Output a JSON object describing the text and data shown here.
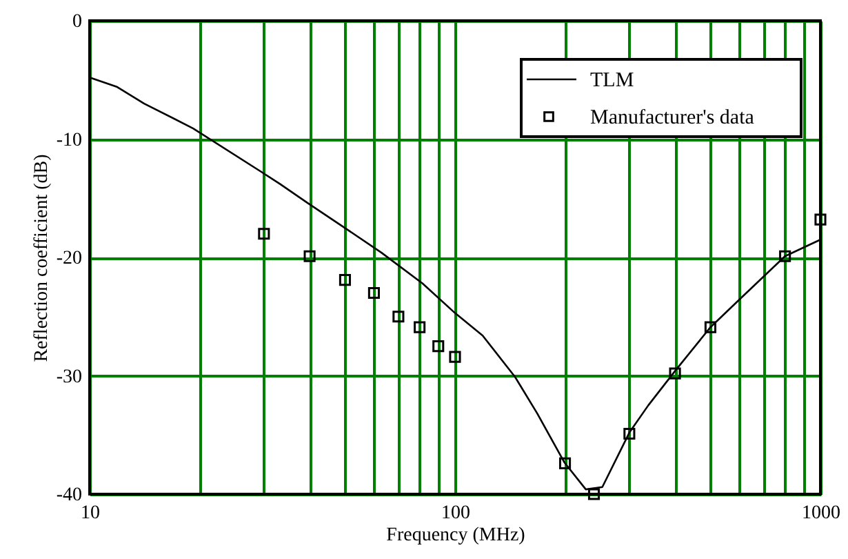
{
  "chart_data": {
    "type": "line",
    "xlabel": "Frequency (MHz)",
    "ylabel": "Reflection coefficient (dB)",
    "log": "x",
    "xlim": [
      10,
      1000
    ],
    "ylim": [
      -40,
      0
    ],
    "xticks": [
      10,
      {
        "value": 20,
        "label": null
      },
      {
        "value": 30,
        "label": null
      },
      {
        "value": 40,
        "label": null
      },
      {
        "value": 50,
        "label": null
      },
      {
        "value": 60,
        "label": null
      },
      {
        "value": 70,
        "label": null
      },
      {
        "value": 80,
        "label": null
      },
      {
        "value": 90,
        "label": null
      },
      100,
      {
        "value": 200,
        "label": null
      },
      {
        "value": 300,
        "label": null
      },
      {
        "value": 400,
        "label": null
      },
      {
        "value": 500,
        "label": null
      },
      {
        "value": 600,
        "label": null
      },
      {
        "value": 700,
        "label": null
      },
      {
        "value": 800,
        "label": null
      },
      {
        "value": 900,
        "label": null
      },
      1000
    ],
    "yticks": [
      -40,
      -30,
      -20,
      -10,
      0
    ],
    "grid": true,
    "legend": "top right",
    "series": [
      {
        "name": "TLM",
        "color": "#000000",
        "marker": "none",
        "x": [
          10,
          11.9,
          14.1,
          19.2,
          29.6,
          33.2,
          39.5,
          49.9,
          62.9,
          81.5,
          100,
          119,
          146,
          168,
          199,
          228,
          253,
          300,
          338,
          400,
          500,
          603,
          800,
          1000
        ],
        "values": [
          -4.8,
          -5.6,
          -7.0,
          -9.1,
          -12.8,
          -13.8,
          -15.4,
          -17.5,
          -19.6,
          -22.2,
          -24.7,
          -26.6,
          -30.1,
          -33.2,
          -37.3,
          -39.6,
          -39.4,
          -34.8,
          -32.5,
          -29.6,
          -25.9,
          -23.5,
          -19.9,
          -18.5
        ]
      },
      {
        "name": "Manufacturer's data",
        "type": "scatter",
        "color": "#000000",
        "marker": "square",
        "x": [
          30,
          40,
          50,
          60,
          70,
          80,
          90,
          100,
          200,
          240,
          300,
          400,
          500,
          800,
          1000
        ],
        "values": [
          -18.0,
          -19.9,
          -21.9,
          -23.0,
          -25.0,
          -25.9,
          -27.5,
          -28.4,
          -37.4,
          -40.0,
          -34.9,
          -29.8,
          -25.9,
          -19.9,
          -16.8
        ]
      }
    ]
  }
}
